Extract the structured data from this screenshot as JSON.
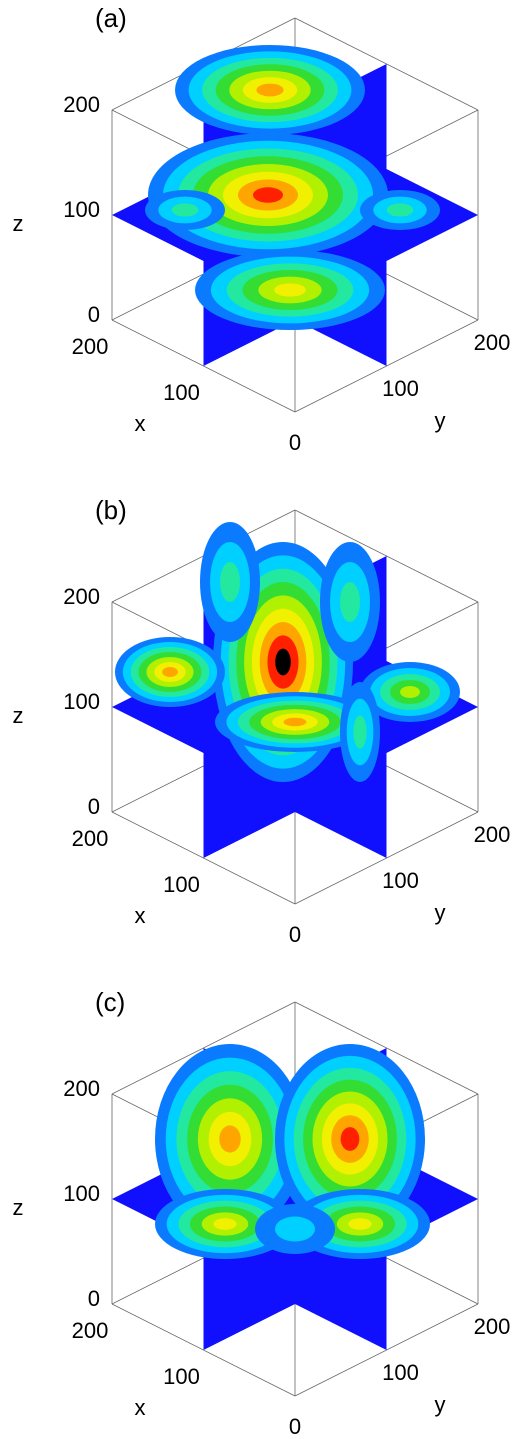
{
  "chart_data": [
    {
      "type": "slice3d",
      "label": "(a)",
      "xlabel": "x",
      "ylabel": "y",
      "zlabel": "z",
      "xlim": [
        0,
        200
      ],
      "ylim": [
        0,
        200
      ],
      "zlim": [
        0,
        200
      ],
      "xticks": [
        0,
        100,
        200
      ],
      "yticks": [
        100,
        200
      ],
      "zticks": [
        0,
        100,
        200
      ]
    },
    {
      "type": "slice3d",
      "label": "(b)",
      "xlabel": "x",
      "ylabel": "y",
      "zlabel": "z",
      "xlim": [
        0,
        200
      ],
      "ylim": [
        0,
        200
      ],
      "zlim": [
        0,
        200
      ],
      "xticks": [
        0,
        100,
        200
      ],
      "yticks": [
        100,
        200
      ],
      "zticks": [
        0,
        100,
        200
      ]
    },
    {
      "type": "slice3d",
      "label": "(c)",
      "xlabel": "x",
      "ylabel": "y",
      "zlabel": "z",
      "xlim": [
        0,
        200
      ],
      "ylim": [
        0,
        200
      ],
      "zlim": [
        0,
        200
      ],
      "xticks": [
        0,
        100,
        200
      ],
      "yticks": [
        100,
        200
      ],
      "zticks": [
        0,
        100,
        200
      ]
    }
  ]
}
